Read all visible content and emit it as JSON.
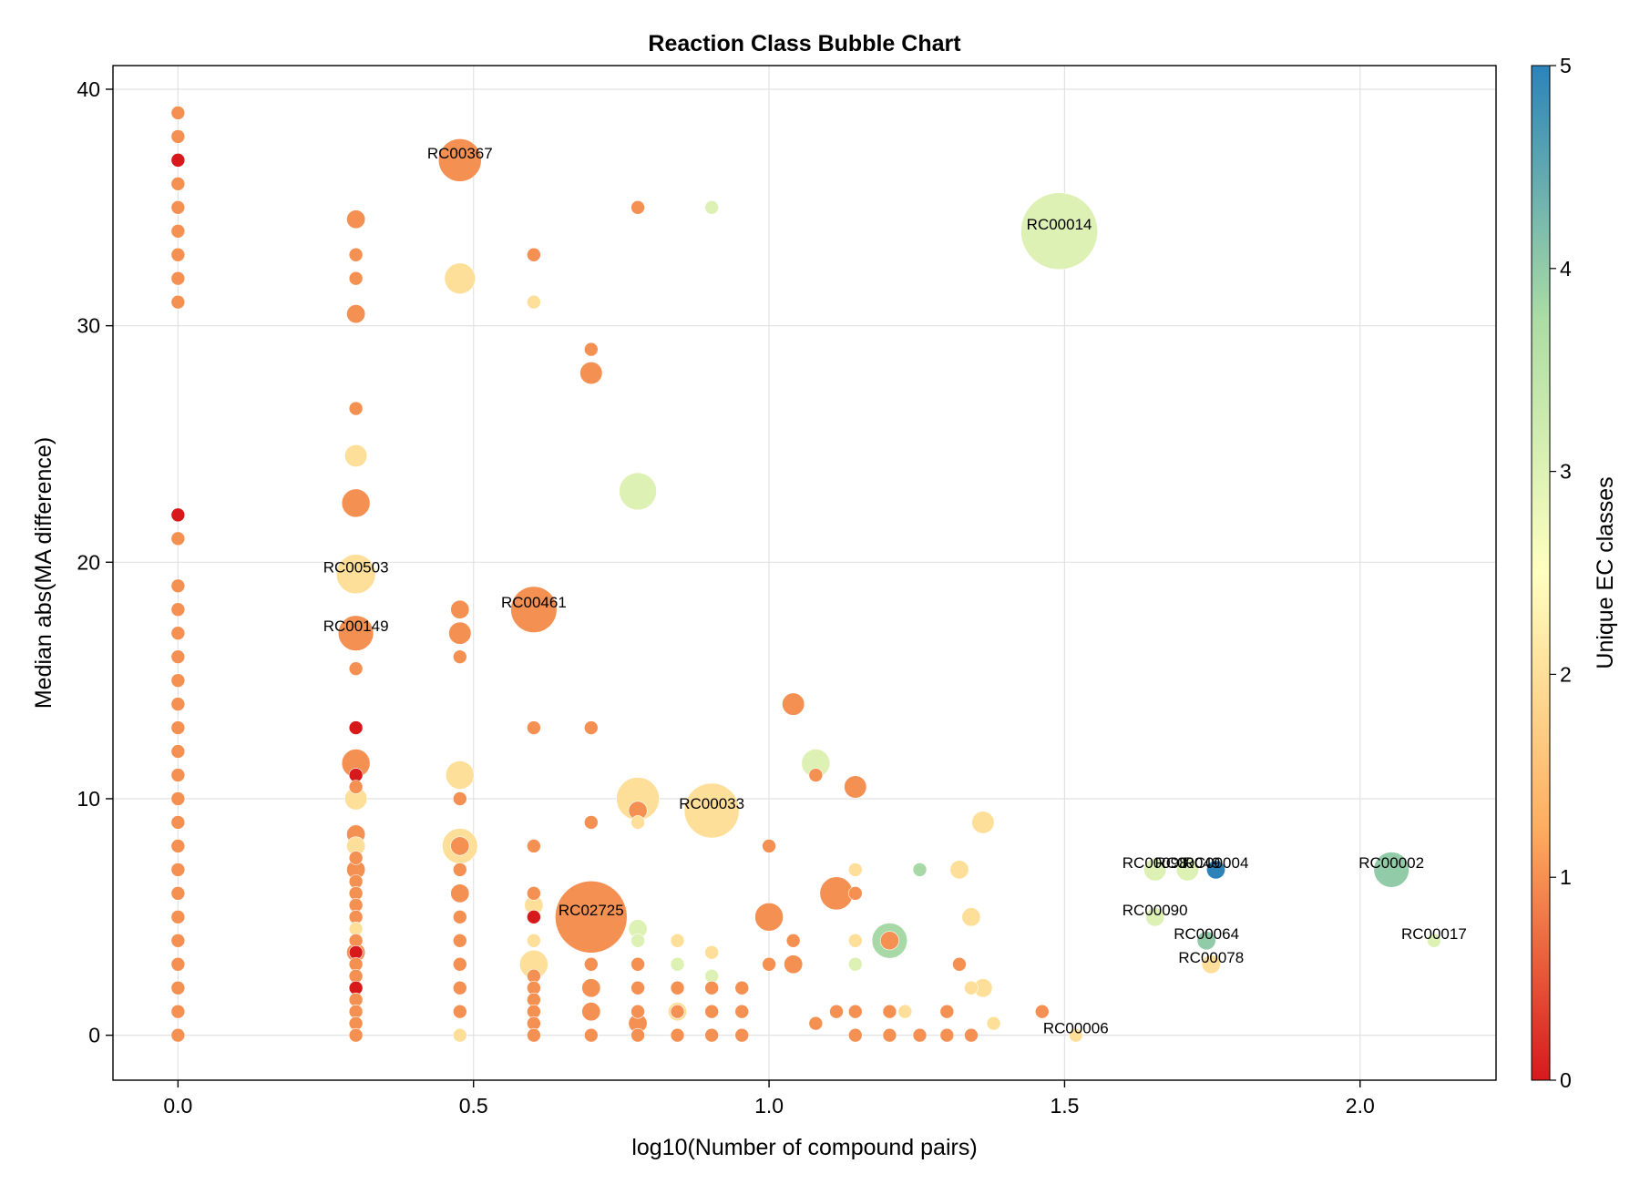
{
  "chart_data": {
    "type": "scatter",
    "title": "Reaction Class Bubble Chart",
    "xlabel": "log10(Number of compound pairs)",
    "ylabel": "Median abs(MA difference)",
    "xlim": [
      -0.11,
      2.23
    ],
    "ylim": [
      -1.9,
      41
    ],
    "xticks": [
      0.0,
      0.5,
      1.0,
      1.5,
      2.0
    ],
    "yticks": [
      0,
      10,
      20,
      30,
      40
    ],
    "grid": true,
    "colorbar": {
      "label": "Unique EC classes",
      "range": [
        0,
        5
      ],
      "ticks": [
        0,
        1,
        2,
        3,
        4,
        5
      ],
      "colormap": [
        "#d7191c",
        "#fdae61",
        "#ffffbf",
        "#abdda4",
        "#2b83ba"
      ]
    },
    "points": [
      {
        "x": 0.0,
        "y": 39,
        "size": 1,
        "ec": 1
      },
      {
        "x": 0.0,
        "y": 38,
        "size": 1,
        "ec": 1
      },
      {
        "x": 0.0,
        "y": 37,
        "size": 1,
        "ec": 0
      },
      {
        "x": 0.0,
        "y": 36,
        "size": 1,
        "ec": 1
      },
      {
        "x": 0.0,
        "y": 35,
        "size": 1,
        "ec": 1
      },
      {
        "x": 0.0,
        "y": 34,
        "size": 1,
        "ec": 1
      },
      {
        "x": 0.0,
        "y": 33,
        "size": 1,
        "ec": 1
      },
      {
        "x": 0.0,
        "y": 32,
        "size": 1,
        "ec": 1
      },
      {
        "x": 0.0,
        "y": 31,
        "size": 1,
        "ec": 1
      },
      {
        "x": 0.0,
        "y": 22,
        "size": 1,
        "ec": 0
      },
      {
        "x": 0.0,
        "y": 21,
        "size": 1,
        "ec": 1
      },
      {
        "x": 0.0,
        "y": 19,
        "size": 1,
        "ec": 1
      },
      {
        "x": 0.0,
        "y": 18,
        "size": 1,
        "ec": 1
      },
      {
        "x": 0.0,
        "y": 17,
        "size": 1,
        "ec": 1
      },
      {
        "x": 0.0,
        "y": 16,
        "size": 1,
        "ec": 1
      },
      {
        "x": 0.0,
        "y": 15,
        "size": 1,
        "ec": 1
      },
      {
        "x": 0.0,
        "y": 14,
        "size": 1,
        "ec": 1
      },
      {
        "x": 0.0,
        "y": 13,
        "size": 1,
        "ec": 1
      },
      {
        "x": 0.0,
        "y": 12,
        "size": 1,
        "ec": 1
      },
      {
        "x": 0.0,
        "y": 11,
        "size": 1,
        "ec": 1
      },
      {
        "x": 0.0,
        "y": 10,
        "size": 1,
        "ec": 1
      },
      {
        "x": 0.0,
        "y": 9,
        "size": 1,
        "ec": 1
      },
      {
        "x": 0.0,
        "y": 8,
        "size": 1,
        "ec": 1
      },
      {
        "x": 0.0,
        "y": 7,
        "size": 1,
        "ec": 1
      },
      {
        "x": 0.0,
        "y": 6,
        "size": 1,
        "ec": 1
      },
      {
        "x": 0.0,
        "y": 5,
        "size": 1,
        "ec": 1
      },
      {
        "x": 0.0,
        "y": 4,
        "size": 1,
        "ec": 1
      },
      {
        "x": 0.0,
        "y": 3,
        "size": 1,
        "ec": 1
      },
      {
        "x": 0.0,
        "y": 2,
        "size": 1,
        "ec": 1
      },
      {
        "x": 0.0,
        "y": 1,
        "size": 1,
        "ec": 1
      },
      {
        "x": 0.0,
        "y": 0,
        "size": 1,
        "ec": 1
      },
      {
        "x": 0.301,
        "y": 34.5,
        "size": 2,
        "ec": 1
      },
      {
        "x": 0.301,
        "y": 33,
        "size": 1,
        "ec": 1
      },
      {
        "x": 0.301,
        "y": 32,
        "size": 1,
        "ec": 1
      },
      {
        "x": 0.301,
        "y": 30.5,
        "size": 2,
        "ec": 1
      },
      {
        "x": 0.301,
        "y": 26.5,
        "size": 1,
        "ec": 1
      },
      {
        "x": 0.301,
        "y": 24.5,
        "size": 3,
        "ec": 2
      },
      {
        "x": 0.301,
        "y": 22.5,
        "size": 5,
        "ec": 1
      },
      {
        "x": 0.301,
        "y": 19.5,
        "size": 10,
        "ec": 2,
        "label": "RC00503"
      },
      {
        "x": 0.301,
        "y": 17,
        "size": 8,
        "ec": 1,
        "label": "RC00149"
      },
      {
        "x": 0.301,
        "y": 15.5,
        "size": 1,
        "ec": 1
      },
      {
        "x": 0.301,
        "y": 13,
        "size": 1,
        "ec": 0
      },
      {
        "x": 0.301,
        "y": 11.5,
        "size": 5,
        "ec": 1
      },
      {
        "x": 0.301,
        "y": 11,
        "size": 1,
        "ec": 0
      },
      {
        "x": 0.301,
        "y": 10.5,
        "size": 1,
        "ec": 1
      },
      {
        "x": 0.301,
        "y": 10,
        "size": 3,
        "ec": 2
      },
      {
        "x": 0.301,
        "y": 8.5,
        "size": 2,
        "ec": 1
      },
      {
        "x": 0.301,
        "y": 8,
        "size": 2,
        "ec": 2
      },
      {
        "x": 0.301,
        "y": 7.5,
        "size": 1,
        "ec": 1
      },
      {
        "x": 0.301,
        "y": 7,
        "size": 2,
        "ec": 1
      },
      {
        "x": 0.301,
        "y": 6.5,
        "size": 1,
        "ec": 1
      },
      {
        "x": 0.301,
        "y": 6,
        "size": 1,
        "ec": 1
      },
      {
        "x": 0.301,
        "y": 5.5,
        "size": 1,
        "ec": 1
      },
      {
        "x": 0.301,
        "y": 5,
        "size": 1,
        "ec": 1
      },
      {
        "x": 0.301,
        "y": 4.5,
        "size": 1,
        "ec": 2
      },
      {
        "x": 0.301,
        "y": 4,
        "size": 1,
        "ec": 1
      },
      {
        "x": 0.301,
        "y": 3.5,
        "size": 2,
        "ec": 1
      },
      {
        "x": 0.301,
        "y": 3.5,
        "size": 1,
        "ec": 0
      },
      {
        "x": 0.301,
        "y": 3,
        "size": 1,
        "ec": 1
      },
      {
        "x": 0.301,
        "y": 2.5,
        "size": 1,
        "ec": 1
      },
      {
        "x": 0.301,
        "y": 2,
        "size": 1,
        "ec": 0
      },
      {
        "x": 0.301,
        "y": 1.5,
        "size": 1,
        "ec": 1
      },
      {
        "x": 0.301,
        "y": 1,
        "size": 1,
        "ec": 1
      },
      {
        "x": 0.301,
        "y": 0.5,
        "size": 1,
        "ec": 1
      },
      {
        "x": 0.301,
        "y": 0,
        "size": 1,
        "ec": 1
      },
      {
        "x": 0.477,
        "y": 37,
        "size": 12,
        "ec": 1,
        "label": "RC00367"
      },
      {
        "x": 0.477,
        "y": 32,
        "size": 6,
        "ec": 2
      },
      {
        "x": 0.477,
        "y": 18,
        "size": 2,
        "ec": 1
      },
      {
        "x": 0.477,
        "y": 17,
        "size": 3,
        "ec": 1
      },
      {
        "x": 0.477,
        "y": 16,
        "size": 1,
        "ec": 1
      },
      {
        "x": 0.477,
        "y": 11,
        "size": 5,
        "ec": 2
      },
      {
        "x": 0.477,
        "y": 10,
        "size": 1,
        "ec": 1
      },
      {
        "x": 0.477,
        "y": 8,
        "size": 8,
        "ec": 2
      },
      {
        "x": 0.477,
        "y": 8,
        "size": 2,
        "ec": 1
      },
      {
        "x": 0.477,
        "y": 7,
        "size": 1,
        "ec": 1
      },
      {
        "x": 0.477,
        "y": 6,
        "size": 2,
        "ec": 1
      },
      {
        "x": 0.477,
        "y": 5,
        "size": 1,
        "ec": 1
      },
      {
        "x": 0.477,
        "y": 4,
        "size": 1,
        "ec": 2
      },
      {
        "x": 0.477,
        "y": 4,
        "size": 1,
        "ec": 1
      },
      {
        "x": 0.477,
        "y": 3,
        "size": 1,
        "ec": 1
      },
      {
        "x": 0.477,
        "y": 2,
        "size": 1,
        "ec": 1
      },
      {
        "x": 0.477,
        "y": 1,
        "size": 1,
        "ec": 1
      },
      {
        "x": 0.477,
        "y": 0,
        "size": 1,
        "ec": 2
      },
      {
        "x": 0.602,
        "y": 33,
        "size": 1,
        "ec": 1
      },
      {
        "x": 0.602,
        "y": 31,
        "size": 1,
        "ec": 2
      },
      {
        "x": 0.602,
        "y": 18,
        "size": 14,
        "ec": 1,
        "label": "RC00461"
      },
      {
        "x": 0.602,
        "y": 13,
        "size": 1,
        "ec": 1
      },
      {
        "x": 0.602,
        "y": 8,
        "size": 1,
        "ec": 1
      },
      {
        "x": 0.602,
        "y": 6,
        "size": 1,
        "ec": 1
      },
      {
        "x": 0.602,
        "y": 5.5,
        "size": 2,
        "ec": 2
      },
      {
        "x": 0.602,
        "y": 5,
        "size": 1,
        "ec": 0
      },
      {
        "x": 0.602,
        "y": 4,
        "size": 1,
        "ec": 2
      },
      {
        "x": 0.602,
        "y": 3,
        "size": 5,
        "ec": 2
      },
      {
        "x": 0.602,
        "y": 2.5,
        "size": 1,
        "ec": 1
      },
      {
        "x": 0.602,
        "y": 2,
        "size": 1,
        "ec": 1
      },
      {
        "x": 0.602,
        "y": 1.5,
        "size": 1,
        "ec": 1
      },
      {
        "x": 0.602,
        "y": 1,
        "size": 1,
        "ec": 1
      },
      {
        "x": 0.602,
        "y": 0.5,
        "size": 1,
        "ec": 1
      },
      {
        "x": 0.602,
        "y": 0,
        "size": 1,
        "ec": 1
      },
      {
        "x": 0.699,
        "y": 29,
        "size": 1,
        "ec": 1
      },
      {
        "x": 0.699,
        "y": 28,
        "size": 3,
        "ec": 1
      },
      {
        "x": 0.699,
        "y": 13,
        "size": 1,
        "ec": 1
      },
      {
        "x": 0.699,
        "y": 9,
        "size": 1,
        "ec": 1
      },
      {
        "x": 0.699,
        "y": 5,
        "size": 35,
        "ec": 1,
        "label": "RC02725"
      },
      {
        "x": 0.699,
        "y": 3,
        "size": 1,
        "ec": 1
      },
      {
        "x": 0.699,
        "y": 2,
        "size": 2,
        "ec": 1
      },
      {
        "x": 0.699,
        "y": 1,
        "size": 2,
        "ec": 1
      },
      {
        "x": 0.699,
        "y": 0,
        "size": 1,
        "ec": 1
      },
      {
        "x": 0.778,
        "y": 35,
        "size": 1,
        "ec": 1
      },
      {
        "x": 0.778,
        "y": 23,
        "size": 9,
        "ec": 3
      },
      {
        "x": 0.778,
        "y": 10,
        "size": 12,
        "ec": 2
      },
      {
        "x": 0.778,
        "y": 9.5,
        "size": 2,
        "ec": 1
      },
      {
        "x": 0.778,
        "y": 9,
        "size": 1,
        "ec": 2
      },
      {
        "x": 0.778,
        "y": 4.5,
        "size": 2,
        "ec": 3
      },
      {
        "x": 0.778,
        "y": 4,
        "size": 1,
        "ec": 3
      },
      {
        "x": 0.778,
        "y": 3,
        "size": 1,
        "ec": 1
      },
      {
        "x": 0.778,
        "y": 2,
        "size": 1,
        "ec": 2
      },
      {
        "x": 0.778,
        "y": 2,
        "size": 1,
        "ec": 1
      },
      {
        "x": 0.778,
        "y": 1,
        "size": 1,
        "ec": 1
      },
      {
        "x": 0.778,
        "y": 0.5,
        "size": 2,
        "ec": 1
      },
      {
        "x": 0.778,
        "y": 0,
        "size": 1,
        "ec": 1
      },
      {
        "x": 0.845,
        "y": 4,
        "size": 1,
        "ec": 2
      },
      {
        "x": 0.845,
        "y": 3,
        "size": 1,
        "ec": 3
      },
      {
        "x": 0.845,
        "y": 2,
        "size": 1,
        "ec": 1
      },
      {
        "x": 0.845,
        "y": 1,
        "size": 2,
        "ec": 2
      },
      {
        "x": 0.845,
        "y": 1,
        "size": 1,
        "ec": 1
      },
      {
        "x": 0.845,
        "y": 0,
        "size": 1,
        "ec": 1
      },
      {
        "x": 0.903,
        "y": 35,
        "size": 1,
        "ec": 3
      },
      {
        "x": 0.903,
        "y": 9.5,
        "size": 20,
        "ec": 2,
        "label": "RC00033"
      },
      {
        "x": 0.903,
        "y": 3.5,
        "size": 1,
        "ec": 2
      },
      {
        "x": 0.903,
        "y": 2.5,
        "size": 1,
        "ec": 3
      },
      {
        "x": 0.903,
        "y": 2,
        "size": 1,
        "ec": 1
      },
      {
        "x": 0.903,
        "y": 1,
        "size": 1,
        "ec": 1
      },
      {
        "x": 0.903,
        "y": 0,
        "size": 1,
        "ec": 1
      },
      {
        "x": 0.954,
        "y": 2,
        "size": 1,
        "ec": 1
      },
      {
        "x": 0.954,
        "y": 1,
        "size": 1,
        "ec": 1
      },
      {
        "x": 0.954,
        "y": 0,
        "size": 1,
        "ec": 1
      },
      {
        "x": 1.0,
        "y": 8,
        "size": 1,
        "ec": 1
      },
      {
        "x": 1.0,
        "y": 5,
        "size": 5,
        "ec": 1
      },
      {
        "x": 1.0,
        "y": 3,
        "size": 1,
        "ec": 1
      },
      {
        "x": 1.041,
        "y": 14,
        "size": 3,
        "ec": 1
      },
      {
        "x": 1.041,
        "y": 4,
        "size": 1,
        "ec": 1
      },
      {
        "x": 1.041,
        "y": 3,
        "size": 2,
        "ec": 1
      },
      {
        "x": 1.079,
        "y": 11.5,
        "size": 5,
        "ec": 3
      },
      {
        "x": 1.079,
        "y": 11,
        "size": 1,
        "ec": 1
      },
      {
        "x": 1.079,
        "y": 0.5,
        "size": 1,
        "ec": 1
      },
      {
        "x": 1.114,
        "y": 6,
        "size": 7,
        "ec": 1
      },
      {
        "x": 1.114,
        "y": 1,
        "size": 1,
        "ec": 1
      },
      {
        "x": 1.146,
        "y": 10.5,
        "size": 3,
        "ec": 1
      },
      {
        "x": 1.146,
        "y": 7,
        "size": 1,
        "ec": 2
      },
      {
        "x": 1.146,
        "y": 6,
        "size": 1,
        "ec": 1
      },
      {
        "x": 1.146,
        "y": 4,
        "size": 1,
        "ec": 2
      },
      {
        "x": 1.146,
        "y": 3,
        "size": 1,
        "ec": 3
      },
      {
        "x": 1.146,
        "y": 1,
        "size": 1,
        "ec": 1
      },
      {
        "x": 1.146,
        "y": 0,
        "size": 1,
        "ec": 1
      },
      {
        "x": 1.204,
        "y": 4,
        "size": 8,
        "ec": 3.8
      },
      {
        "x": 1.204,
        "y": 4,
        "size": 2,
        "ec": 1
      },
      {
        "x": 1.204,
        "y": 1,
        "size": 1,
        "ec": 1
      },
      {
        "x": 1.204,
        "y": 0,
        "size": 1,
        "ec": 1
      },
      {
        "x": 1.23,
        "y": 1,
        "size": 1,
        "ec": 2
      },
      {
        "x": 1.255,
        "y": 7,
        "size": 1,
        "ec": 3.8
      },
      {
        "x": 1.255,
        "y": 0,
        "size": 1,
        "ec": 1
      },
      {
        "x": 1.301,
        "y": 1,
        "size": 1,
        "ec": 1
      },
      {
        "x": 1.301,
        "y": 0,
        "size": 1,
        "ec": 1
      },
      {
        "x": 1.322,
        "y": 7,
        "size": 2,
        "ec": 2
      },
      {
        "x": 1.322,
        "y": 3,
        "size": 1,
        "ec": 1
      },
      {
        "x": 1.342,
        "y": 5,
        "size": 2,
        "ec": 2
      },
      {
        "x": 1.342,
        "y": 2,
        "size": 1,
        "ec": 2
      },
      {
        "x": 1.342,
        "y": 0,
        "size": 1,
        "ec": 1
      },
      {
        "x": 1.362,
        "y": 9,
        "size": 3,
        "ec": 2
      },
      {
        "x": 1.362,
        "y": 2,
        "size": 2,
        "ec": 2
      },
      {
        "x": 1.38,
        "y": 0.5,
        "size": 1,
        "ec": 2
      },
      {
        "x": 1.462,
        "y": 1,
        "size": 1,
        "ec": 1
      },
      {
        "x": 1.491,
        "y": 34,
        "size": 40,
        "ec": 3,
        "label": "RC00014"
      },
      {
        "x": 1.519,
        "y": 0,
        "size": 1,
        "ec": 2,
        "label": "RC00006"
      },
      {
        "x": 1.653,
        "y": 7,
        "size": 3,
        "ec": 3,
        "label": "RC00098"
      },
      {
        "x": 1.653,
        "y": 5,
        "size": 2,
        "ec": 3,
        "label": "RC00090"
      },
      {
        "x": 1.708,
        "y": 7,
        "size": 3,
        "ec": 3,
        "label": "RC00049"
      },
      {
        "x": 1.756,
        "y": 7,
        "size": 2,
        "ec": 5,
        "label": "RC00004"
      },
      {
        "x": 1.74,
        "y": 4,
        "size": 2,
        "ec": 4,
        "label": "RC00064"
      },
      {
        "x": 1.748,
        "y": 3,
        "size": 2,
        "ec": 2,
        "label": "RC00078"
      },
      {
        "x": 2.053,
        "y": 7,
        "size": 8,
        "ec": 4,
        "label": "RC00002"
      },
      {
        "x": 2.125,
        "y": 4,
        "size": 1,
        "ec": 3,
        "label": "RC00017"
      }
    ]
  }
}
